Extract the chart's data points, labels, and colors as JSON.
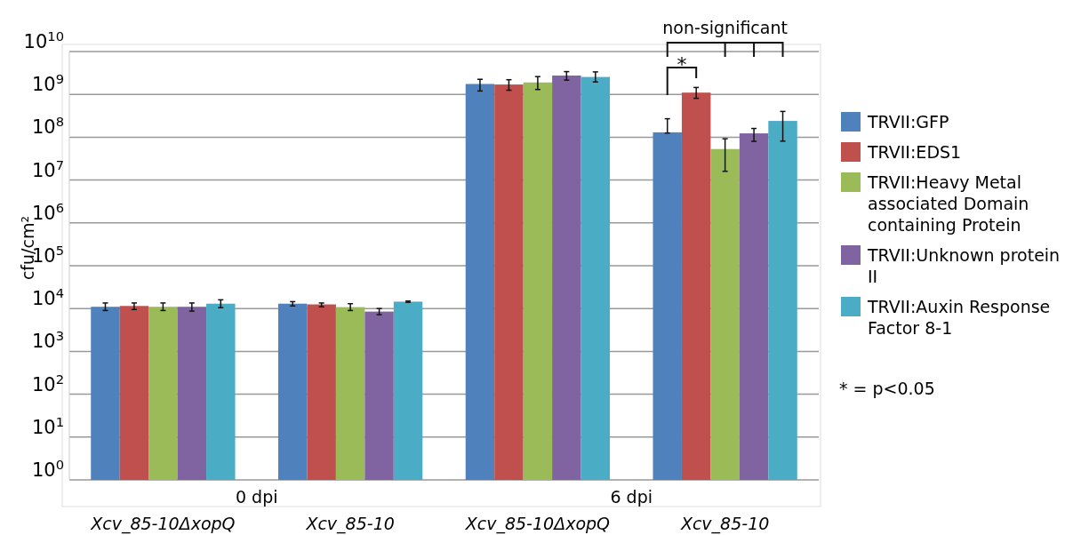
{
  "chart_data": {
    "type": "bar",
    "ylabel": "cfu/cm²",
    "log": "y",
    "grid": "y",
    "legend": "right",
    "categories": [
      "Xcv_85-10ΔxopQ",
      "Xcv_85-10",
      "Xcv_85-10ΔxopQ",
      "Xcv_85-10"
    ],
    "ylim": [
      1,
      10000000000
    ],
    "yticks": [
      {
        "value": 1,
        "label": "10$^{0}$"
      },
      {
        "value": 10,
        "label": "10$^{1}$"
      },
      {
        "value": 100,
        "label": "10$^{2}$"
      },
      {
        "value": 1000,
        "label": "10$^{3}$"
      },
      {
        "value": 10000,
        "label": "10$^{4}$"
      },
      {
        "value": 100000,
        "label": "10$^{5}$"
      },
      {
        "value": 1000000,
        "label": "10$^{6}$"
      },
      {
        "value": 10000000,
        "label": "10$^{7}$"
      },
      {
        "value": 100000000,
        "label": "10$^{8}$"
      },
      {
        "value": 1000000000,
        "label": "10$^{9}$"
      },
      {
        "value": 10000000000,
        "label": "10$^{10}$"
      }
    ],
    "series": [
      {
        "name": "TRVII:GFP",
        "color": "#4f81bd",
        "values": [
          11000,
          13000,
          1750000000,
          130000000
        ],
        "errors": [
          [
            9000,
            13500
          ],
          [
            11500,
            14500
          ],
          [
            1200000000,
            2250000000
          ],
          [
            125000000,
            270000000
          ]
        ]
      },
      {
        "name": "TRVII:EDS1",
        "color": "#c0504d",
        "values": [
          11500,
          12500,
          1700000000,
          1100000000
        ],
        "errors": [
          [
            9500,
            13500
          ],
          [
            11000,
            13500
          ],
          [
            1250000000,
            2200000000
          ],
          [
            810000000,
            1450000000
          ]
        ]
      },
      {
        "name": "TRVII:Heavy Metal associated Domain containing Protein",
        "color": "#9bbb59",
        "values": [
          11000,
          10800,
          1900000000,
          53000000
        ],
        "errors": [
          [
            9000,
            13500
          ],
          [
            9000,
            13000
          ],
          [
            1300000000,
            2600000000
          ],
          [
            16000000,
            92000000
          ]
        ]
      },
      {
        "name": "TRVII:Unknown protein II",
        "color": "#8064a2",
        "values": [
          11000,
          8500,
          2750000000,
          123000000
        ],
        "errors": [
          [
            8700,
            13500
          ],
          [
            7200,
            10000
          ],
          [
            2150000000,
            3400000000
          ],
          [
            80000000,
            160000000
          ]
        ]
      },
      {
        "name": "TRVII:Auxin Response Factor 8-1",
        "color": "#4bacc6",
        "values": [
          13000,
          14500,
          2550000000,
          240000000
        ],
        "errors": [
          [
            10500,
            16000
          ],
          [
            14000,
            15000
          ],
          [
            1950000000,
            3350000000
          ],
          [
            81000000,
            400000000
          ]
        ]
      }
    ],
    "annotations": [
      "0 dpi",
      "6 dpi",
      "non-significant",
      "*",
      "* = p<0.05"
    ]
  }
}
